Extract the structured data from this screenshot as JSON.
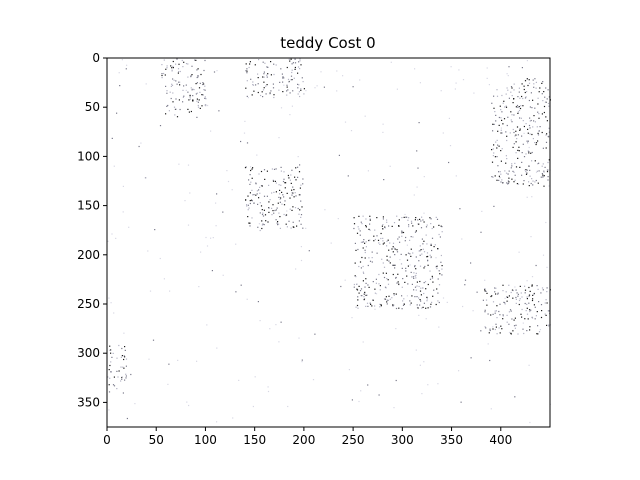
{
  "chart_data": {
    "type": "heatmap",
    "title": "teddy Cost 0",
    "xlabel": "",
    "ylabel": "",
    "xlim": [
      0,
      450
    ],
    "ylim": [
      375,
      0
    ],
    "x_ticks": [
      "0",
      "50",
      "100",
      "150",
      "200",
      "250",
      "300",
      "350",
      "400"
    ],
    "y_ticks": [
      "0",
      "50",
      "100",
      "150",
      "200",
      "250",
      "300",
      "350"
    ],
    "colormap": "white-to-black (sparse dark speckles on near-white background)",
    "grid": false,
    "regions_of_dark_speckle": [
      {
        "x_range": [
          55,
          100
        ],
        "y_range": [
          0,
          60
        ]
      },
      {
        "x_range": [
          140,
          200
        ],
        "y_range": [
          0,
          40
        ]
      },
      {
        "x_range": [
          140,
          200
        ],
        "y_range": [
          110,
          175
        ]
      },
      {
        "x_range": [
          250,
          340
        ],
        "y_range": [
          160,
          255
        ]
      },
      {
        "x_range": [
          390,
          450
        ],
        "y_range": [
          20,
          130
        ]
      },
      {
        "x_range": [
          0,
          20
        ],
        "y_range": [
          290,
          340
        ]
      },
      {
        "x_range": [
          380,
          450
        ],
        "y_range": [
          230,
          280
        ]
      }
    ]
  },
  "colors": {
    "background": "#ffffff",
    "speckle_dark": "#1a1a1a",
    "speckle_mid": "#7a7a8a",
    "axis": "#000000"
  }
}
